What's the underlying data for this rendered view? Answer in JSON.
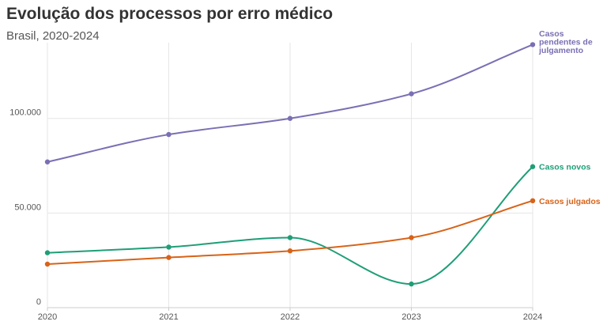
{
  "title": "Evolução dos processos por erro médico",
  "subtitle": "Brasil, 2020-2024",
  "colors": {
    "pendentes": "#7b6fb4",
    "novos": "#1f9e77",
    "julgados": "#d86318",
    "grid": "#e6e6e6",
    "axis": "#cccccc"
  },
  "chart_data": {
    "type": "line",
    "title": "Evolução dos processos por erro médico",
    "subtitle": "Brasil, 2020-2024",
    "x": [
      "2020",
      "2021",
      "2022",
      "2023",
      "2024"
    ],
    "ylim": [
      0,
      140000
    ],
    "yticks": [
      0,
      50000,
      100000
    ],
    "ytick_labels": [
      "0",
      "50.000",
      "100.000"
    ],
    "grid": true,
    "legend": "direct labels at line ends",
    "series": [
      {
        "key": "pendentes",
        "name": "Casos pendentes de julgamento",
        "label_lines": [
          "Casos",
          "pendentes de",
          "julgamento"
        ],
        "values": [
          77000,
          91500,
          100000,
          113000,
          139000
        ]
      },
      {
        "key": "novos",
        "name": "Casos novos",
        "label_lines": [
          "Casos novos"
        ],
        "values": [
          29000,
          32000,
          37000,
          12500,
          74500
        ]
      },
      {
        "key": "julgados",
        "name": "Casos julgados",
        "label_lines": [
          "Casos julgados"
        ],
        "values": [
          23000,
          26500,
          30000,
          37000,
          56500
        ]
      }
    ]
  }
}
